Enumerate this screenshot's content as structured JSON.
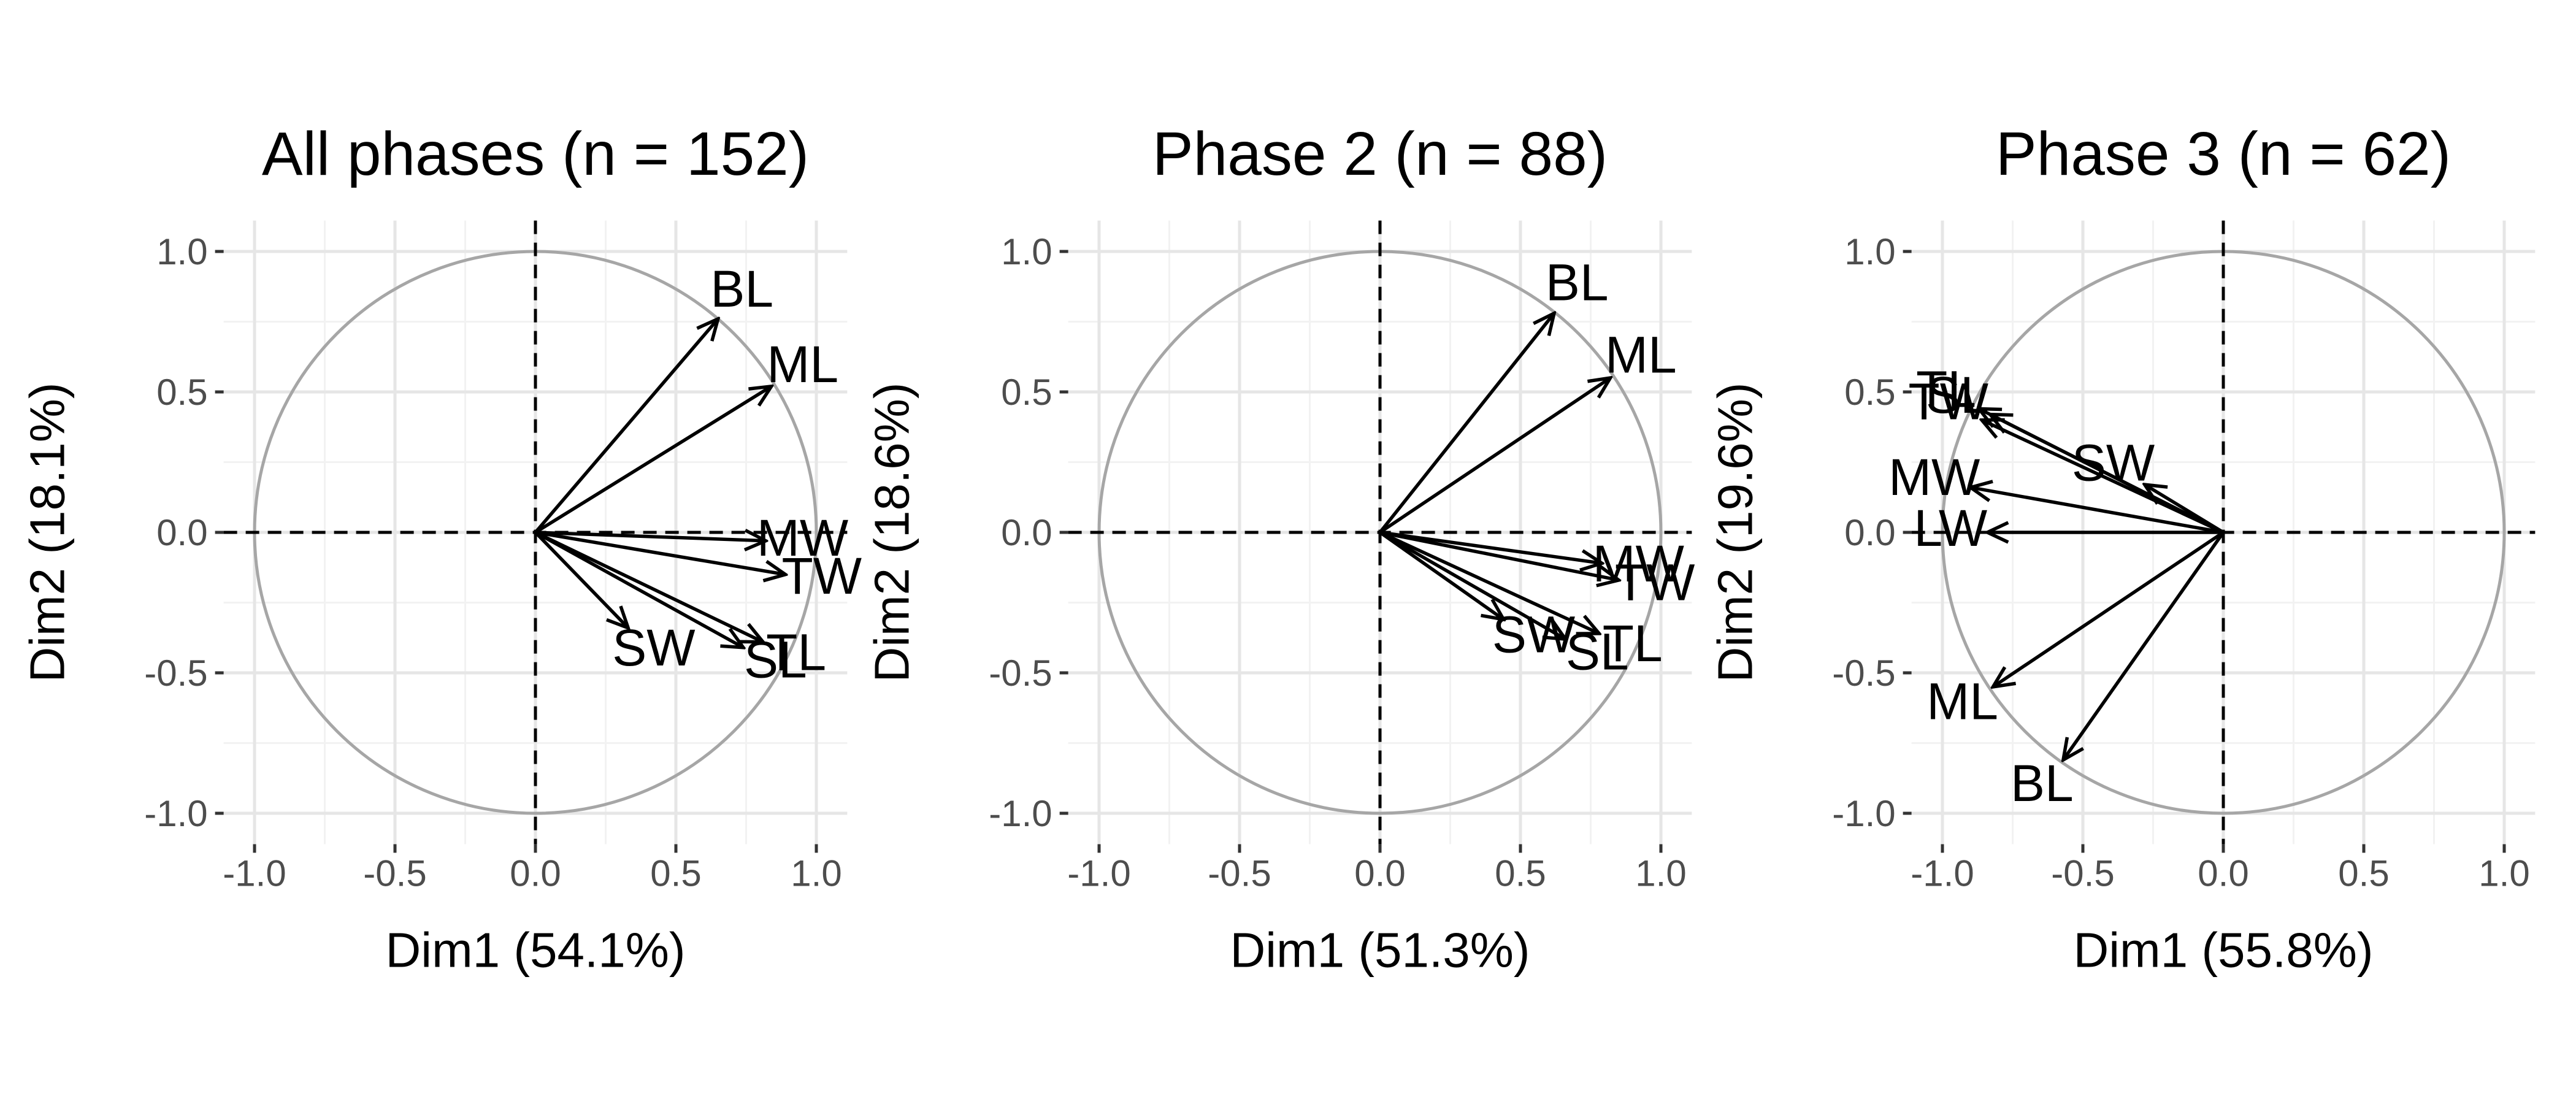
{
  "figure": {
    "background": "#ffffff",
    "grid_major_color": "#e6e6e6",
    "grid_minor_color": "#f2f2f2",
    "circle_color": "#a6a6a6",
    "arrow_color": "#000000"
  },
  "chart_data": [
    {
      "type": "pca-correlation-circle",
      "title": "All phases (n = 152)",
      "xlabel": "Dim1 (54.1%)",
      "ylabel": "Dim2 (18.1%)",
      "xlim": [
        -1.0,
        1.0
      ],
      "ylim": [
        -1.0,
        1.0
      ],
      "xticks": [
        "-1.0",
        "-0.5",
        "0.0",
        "0.5",
        "1.0"
      ],
      "yticks": [
        "-1.0",
        "-0.5",
        "0.0",
        "0.5",
        "1.0"
      ],
      "grid": true,
      "vectors": [
        {
          "label": "BL",
          "x": 0.65,
          "y": 0.76
        },
        {
          "label": "ML",
          "x": 0.84,
          "y": 0.52
        },
        {
          "label": "MW",
          "x": 0.82,
          "y": -0.03
        },
        {
          "label": "TW",
          "x": 0.89,
          "y": -0.15
        },
        {
          "label": "TL",
          "x": 0.81,
          "y": -0.39
        },
        {
          "label": "SL",
          "x": 0.74,
          "y": -0.41
        },
        {
          "label": "SW",
          "x": 0.33,
          "y": -0.34
        }
      ]
    },
    {
      "type": "pca-correlation-circle",
      "title": "Phase 2 (n = 88)",
      "xlabel": "Dim1 (51.3%)",
      "ylabel": "Dim2 (18.6%)",
      "xlim": [
        -1.0,
        1.0
      ],
      "ylim": [
        -1.0,
        1.0
      ],
      "xticks": [
        "-1.0",
        "-0.5",
        "0.0",
        "0.5",
        "1.0"
      ],
      "yticks": [
        "-1.0",
        "-0.5",
        "0.0",
        "0.5",
        "1.0"
      ],
      "grid": true,
      "vectors": [
        {
          "label": "BL",
          "x": 0.62,
          "y": 0.78
        },
        {
          "label": "ML",
          "x": 0.82,
          "y": 0.55
        },
        {
          "label": "MW",
          "x": 0.79,
          "y": -0.11
        },
        {
          "label": "TW",
          "x": 0.85,
          "y": -0.17
        },
        {
          "label": "TL",
          "x": 0.78,
          "y": -0.36
        },
        {
          "label": "SL",
          "x": 0.66,
          "y": -0.38
        },
        {
          "label": "SW",
          "x": 0.44,
          "y": -0.31
        }
      ]
    },
    {
      "type": "pca-correlation-circle",
      "title": "Phase 3 (n = 62)",
      "xlabel": "Dim1 (55.8%)",
      "ylabel": "Dim2 (19.6%)",
      "xlim": [
        -1.0,
        1.0
      ],
      "ylim": [
        -1.0,
        1.0
      ],
      "xticks": [
        "-1.0",
        "-0.5",
        "0.0",
        "0.5",
        "1.0"
      ],
      "yticks": [
        "-1.0",
        "-0.5",
        "0.0",
        "0.5",
        "1.0"
      ],
      "grid": true,
      "vectors": [
        {
          "label": "TL",
          "x": -0.87,
          "y": 0.44
        },
        {
          "label": "SL",
          "x": -0.83,
          "y": 0.42
        },
        {
          "label": "TW",
          "x": -0.86,
          "y": 0.4
        },
        {
          "label": "SW",
          "x": -0.28,
          "y": 0.17
        },
        {
          "label": "MW",
          "x": -0.9,
          "y": 0.16
        },
        {
          "label": "LW",
          "x": -0.84,
          "y": 0.0
        },
        {
          "label": "ML",
          "x": -0.82,
          "y": -0.55
        },
        {
          "label": "BL",
          "x": -0.57,
          "y": -0.81
        }
      ]
    }
  ]
}
